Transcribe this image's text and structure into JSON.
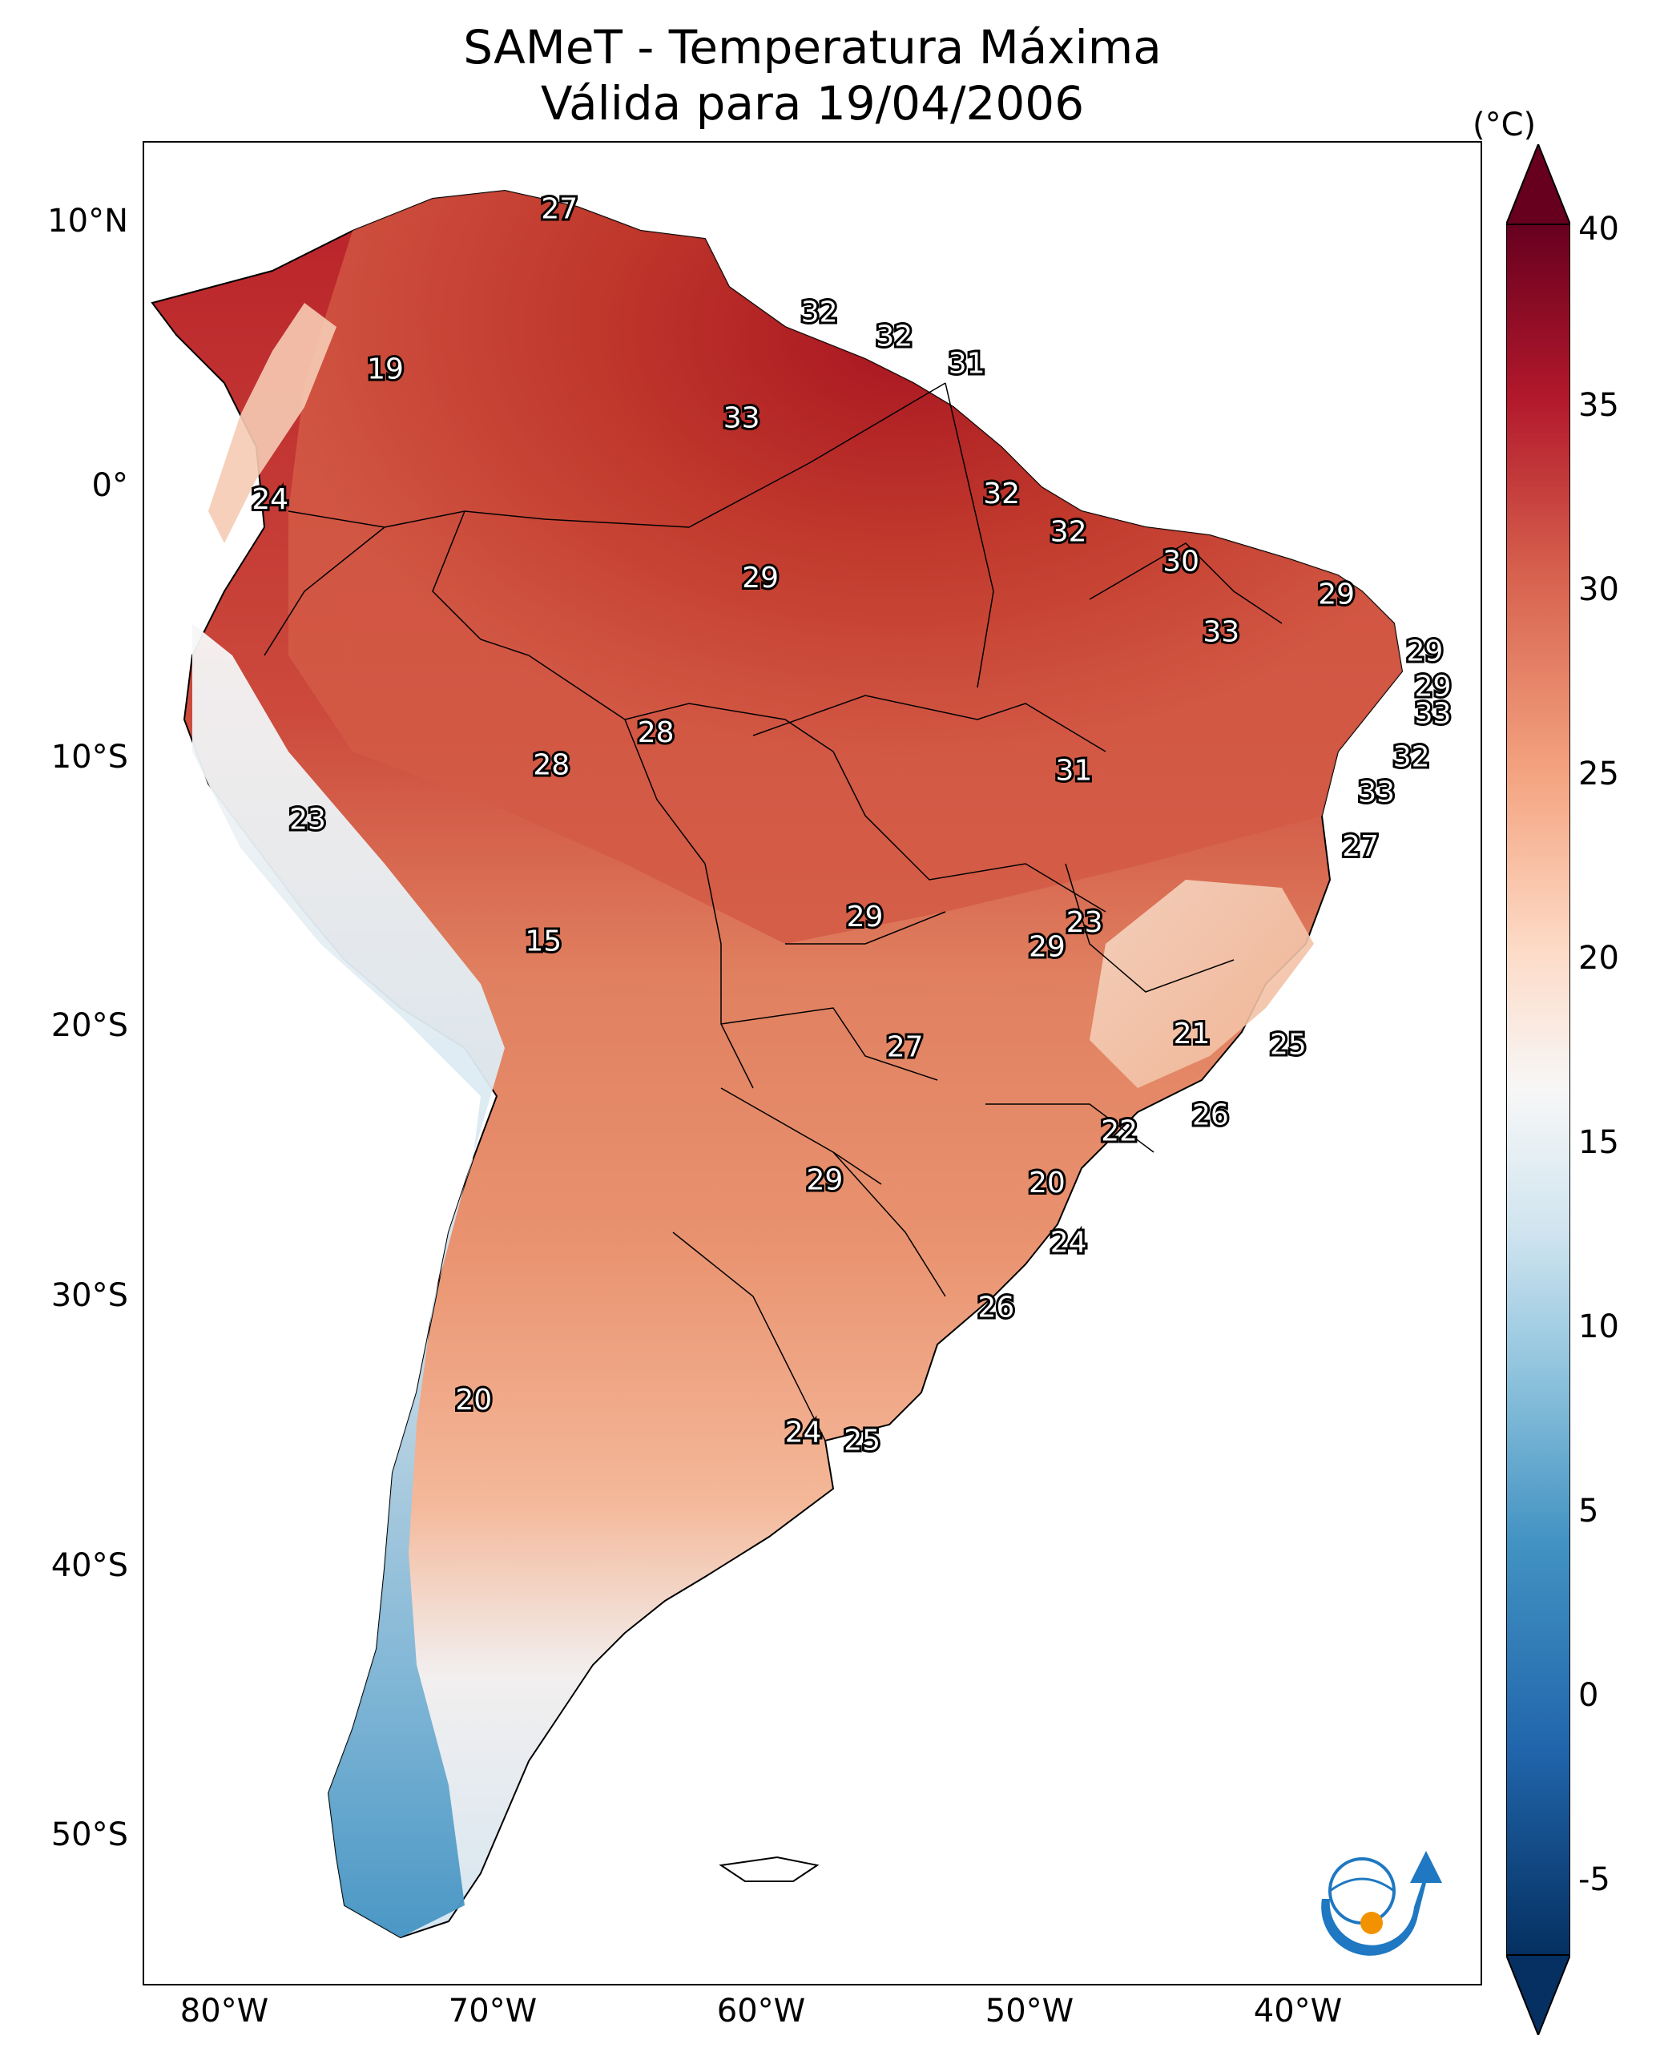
{
  "title": {
    "line1": "SAMeT - Temperatura Máxima",
    "line2": "Válida para 19/04/2006"
  },
  "map_axes": {
    "lat_labels": [
      "10°N",
      "0°",
      "10°S",
      "20°S",
      "30°S",
      "40°S",
      "50°S"
    ],
    "lon_labels": [
      "80°W",
      "70°W",
      "60°W",
      "50°W",
      "40°W"
    ],
    "lon_range": [
      -83,
      -33
    ],
    "lat_range": [
      13,
      -55
    ]
  },
  "colorbar": {
    "unit": "(°C)",
    "min": -5,
    "max": 40,
    "ticks": [
      "40",
      "35",
      "30",
      "25",
      "20",
      "15",
      "10",
      "5",
      "0",
      "-5"
    ],
    "colors": [
      "#053061",
      "#2166ac",
      "#4393c3",
      "#92c5de",
      "#d1e5f0",
      "#f7f7f7",
      "#fddbc7",
      "#f4a582",
      "#d6604d",
      "#b2182b",
      "#67001f"
    ]
  },
  "station_labels": [
    {
      "value": "27",
      "lon": -67.5,
      "lat": 10.5
    },
    {
      "value": "32",
      "lon": -57.8,
      "lat": 6.7
    },
    {
      "value": "32",
      "lon": -55.0,
      "lat": 5.8
    },
    {
      "value": "31",
      "lon": -52.3,
      "lat": 4.8
    },
    {
      "value": "19",
      "lon": -74.0,
      "lat": 4.6
    },
    {
      "value": "33",
      "lon": -60.7,
      "lat": 2.8
    },
    {
      "value": "24",
      "lon": -78.3,
      "lat": -0.2
    },
    {
      "value": "32",
      "lon": -51.0,
      "lat": 0.0
    },
    {
      "value": "32",
      "lon": -48.5,
      "lat": -1.4
    },
    {
      "value": "30",
      "lon": -44.3,
      "lat": -2.5
    },
    {
      "value": "29",
      "lon": -60.0,
      "lat": -3.1
    },
    {
      "value": "29",
      "lon": -38.5,
      "lat": -3.7
    },
    {
      "value": "33",
      "lon": -42.8,
      "lat": -5.1
    },
    {
      "value": "29",
      "lon": -35.2,
      "lat": -5.8
    },
    {
      "value": "29",
      "lon": -34.9,
      "lat": -7.1
    },
    {
      "value": "33",
      "lon": -34.9,
      "lat": -8.1
    },
    {
      "value": "28",
      "lon": -63.9,
      "lat": -8.8
    },
    {
      "value": "32",
      "lon": -35.7,
      "lat": -9.7
    },
    {
      "value": "28",
      "lon": -67.8,
      "lat": -10.0
    },
    {
      "value": "31",
      "lon": -48.3,
      "lat": -10.2
    },
    {
      "value": "33",
      "lon": -37.0,
      "lat": -11.0
    },
    {
      "value": "23",
      "lon": -76.9,
      "lat": -12.0
    },
    {
      "value": "27",
      "lon": -37.6,
      "lat": -13.0
    },
    {
      "value": "29",
      "lon": -56.1,
      "lat": -15.6
    },
    {
      "value": "23",
      "lon": -47.9,
      "lat": -15.8
    },
    {
      "value": "15",
      "lon": -68.1,
      "lat": -16.5
    },
    {
      "value": "29",
      "lon": -49.3,
      "lat": -16.7
    },
    {
      "value": "21",
      "lon": -43.9,
      "lat": -19.9
    },
    {
      "value": "27",
      "lon": -54.6,
      "lat": -20.4
    },
    {
      "value": "25",
      "lon": -40.3,
      "lat": -20.3
    },
    {
      "value": "26",
      "lon": -43.2,
      "lat": -22.9
    },
    {
      "value": "22",
      "lon": -46.6,
      "lat": -23.5
    },
    {
      "value": "20",
      "lon": -49.3,
      "lat": -25.4
    },
    {
      "value": "29",
      "lon": -57.6,
      "lat": -25.3
    },
    {
      "value": "24",
      "lon": -48.5,
      "lat": -27.6
    },
    {
      "value": "26",
      "lon": -51.2,
      "lat": -30.0
    },
    {
      "value": "20",
      "lon": -70.7,
      "lat": -33.4
    },
    {
      "value": "24",
      "lon": -58.4,
      "lat": -34.6
    },
    {
      "value": "25",
      "lon": -56.2,
      "lat": -34.9
    }
  ]
}
